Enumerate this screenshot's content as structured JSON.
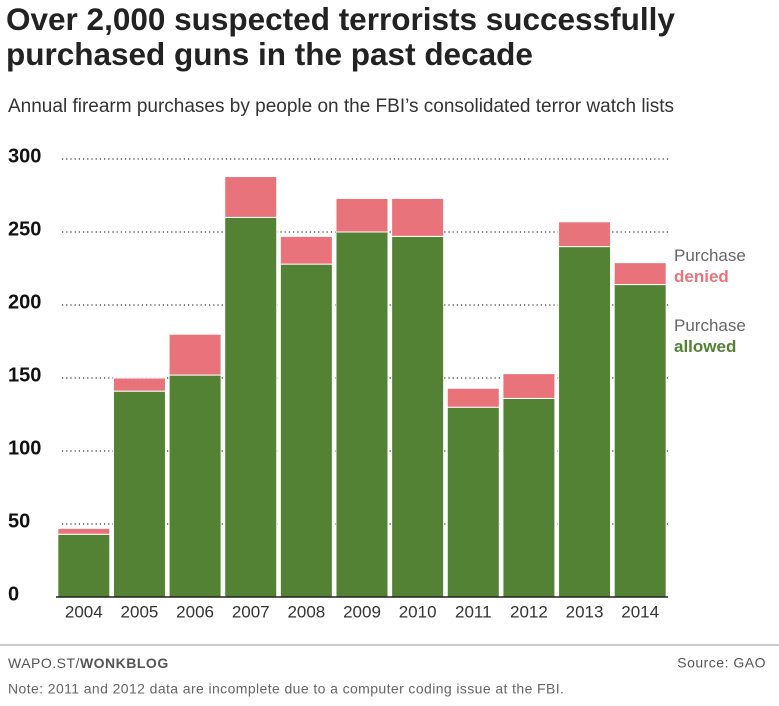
{
  "chart_data": {
    "type": "stacked_bar",
    "title": "Over 2,000 suspected terrorists successfully purchased guns in the past decade",
    "subtitle": "Annual firearm purchases by people on the FBI’s consolidated terror watch lists",
    "categories": [
      "2004",
      "2005",
      "2006",
      "2007",
      "2008",
      "2009",
      "2010",
      "2011",
      "2012",
      "2013",
      "2014"
    ],
    "series": [
      {
        "name": "Purchase allowed",
        "color": "#548235",
        "values": [
          43,
          141,
          152,
          260,
          228,
          250,
          247,
          130,
          136,
          240,
          214
        ]
      },
      {
        "name": "Purchase denied",
        "color": "#e8737a",
        "values": [
          4,
          9,
          28,
          28,
          19,
          23,
          26,
          13,
          17,
          17,
          15
        ]
      }
    ],
    "ylim": [
      0,
      300
    ],
    "yticks": [
      0,
      50,
      100,
      150,
      200,
      250,
      300
    ],
    "grid": true,
    "credit": "WAPO.ST/",
    "credit_bold": "WONKBLOG",
    "source": "Source: GAO",
    "note": "Note: 2011 and 2012 data are incomplete due to a computer coding issue at the FBI."
  }
}
